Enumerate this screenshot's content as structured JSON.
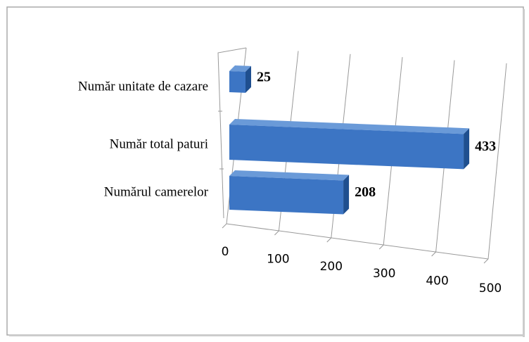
{
  "chart_data": {
    "type": "bar3d",
    "categories": [
      "Număr unitate de cazare",
      "Număr total paturi",
      "Numărul camerelor"
    ],
    "values": [
      25,
      433,
      208
    ],
    "color": "#3c75c4",
    "xlim": [
      0,
      500
    ],
    "xticks": [
      0,
      100,
      200,
      300,
      400,
      500
    ],
    "grid": true
  }
}
